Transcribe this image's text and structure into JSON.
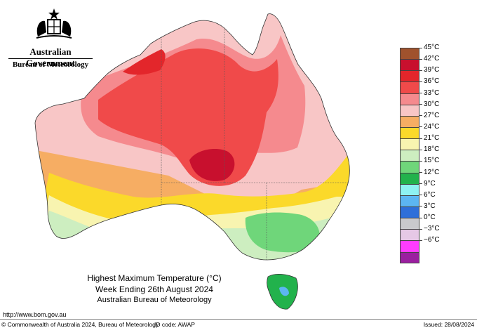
{
  "header": {
    "government": "Australian Government",
    "bureau": "Bureau of Meteorology",
    "crest_icon": "coat-of-arms-icon"
  },
  "map": {
    "title": "Highest Maximum Temperature (°C)",
    "subtitle": "Week Ending 26th August 2024",
    "source": "Australian Bureau of Meteorology"
  },
  "legend": {
    "items": [
      {
        "label": "45°C",
        "color": "#a0522d"
      },
      {
        "label": "42°C",
        "color": "#c8102e"
      },
      {
        "label": "39°C",
        "color": "#e3262b"
      },
      {
        "label": "36°C",
        "color": "#f04a4a"
      },
      {
        "label": "33°C",
        "color": "#f58a8e"
      },
      {
        "label": "30°C",
        "color": "#f8c6c6"
      },
      {
        "label": "27°C",
        "color": "#f6ad63"
      },
      {
        "label": "24°C",
        "color": "#fbd92a"
      },
      {
        "label": "21°C",
        "color": "#f8f4b0"
      },
      {
        "label": "18°C",
        "color": "#cdeec0"
      },
      {
        "label": "15°C",
        "color": "#6fd67a"
      },
      {
        "label": "12°C",
        "color": "#22b24c"
      },
      {
        "label": "9°C",
        "color": "#8ef2f2"
      },
      {
        "label": "6°C",
        "color": "#5cb6f2"
      },
      {
        "label": "3°C",
        "color": "#2e6fd9"
      },
      {
        "label": "0°C",
        "color": "#c9c9cc"
      },
      {
        "label": "−3°C",
        "color": "#e6c8e6"
      },
      {
        "label": "−6°C",
        "color": "#ff3cff"
      },
      {
        "label": "",
        "color": "#9b1fa0"
      }
    ]
  },
  "footer": {
    "url": "http://www.bom.gov.au",
    "copyright": "© Commonwealth of Australia 2024, Bureau of Meteorology",
    "id_code": "ID code: AWAP",
    "issued": "Issued: 28/08/2024"
  }
}
